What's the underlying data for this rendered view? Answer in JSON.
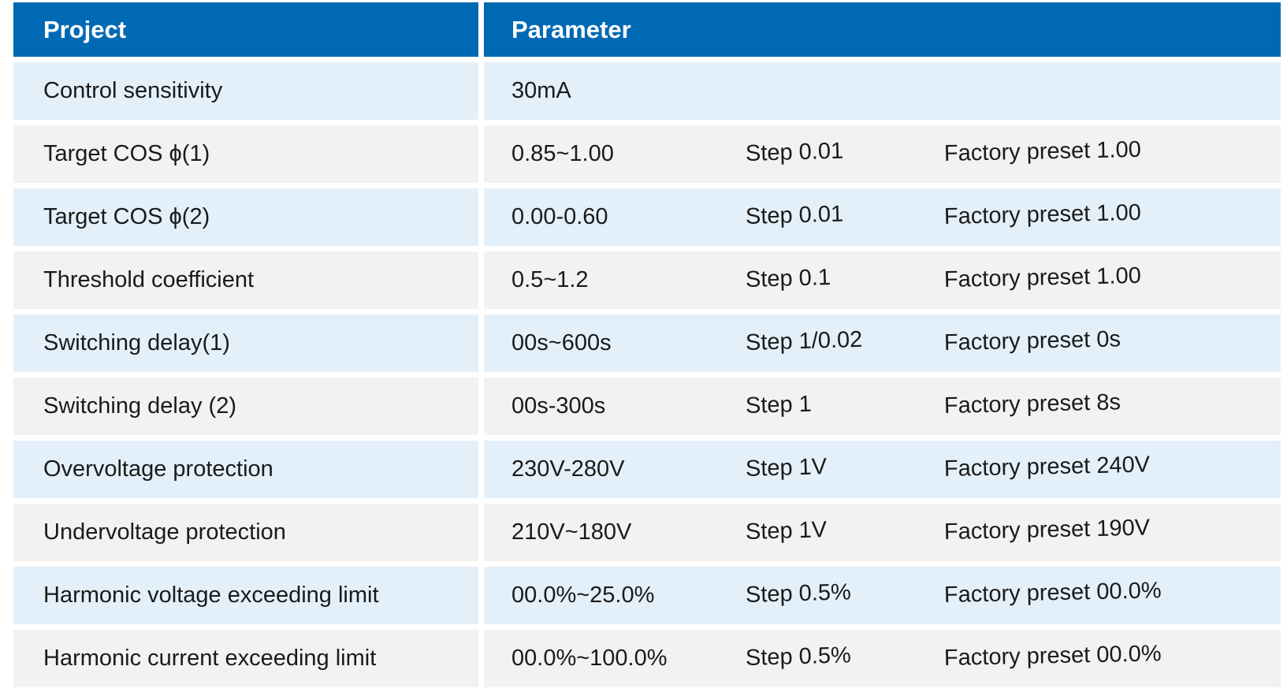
{
  "table": {
    "header": {
      "project": "Project",
      "parameter": "Parameter"
    },
    "rows": [
      {
        "project": "Control sensitivity",
        "value": "30mA",
        "step": "",
        "preset": ""
      },
      {
        "project": "Target COS ϕ(1)",
        "value": "0.85~1.00",
        "step": "Step 0.01",
        "preset": "Factory preset 1.00"
      },
      {
        "project": "Target COS ϕ(2)",
        "value": "0.00-0.60",
        "step": "Step 0.01",
        "preset": "Factory preset 1.00"
      },
      {
        "project": "Threshold coefficient",
        "value": "0.5~1.2",
        "step": "Step 0.1",
        "preset": "Factory preset 1.00"
      },
      {
        "project": "Switching delay(1)",
        "value": "00s~600s",
        "step": "Step 1/0.02",
        "preset": "Factory preset 0s"
      },
      {
        "project": "Switching delay (2)",
        "value": "00s-300s",
        "step": "Step 1",
        "preset": "Factory preset 8s"
      },
      {
        "project": "Overvoltage protection",
        "value": "230V-280V",
        "step": "Step 1V",
        "preset": "Factory preset 240V"
      },
      {
        "project": "Undervoltage protection",
        "value": "210V~180V",
        "step": "Step 1V",
        "preset": "Factory preset 190V"
      },
      {
        "project": "Harmonic voltage exceeding limit",
        "value": "00.0%~25.0%",
        "step": "Step 0.5%",
        "preset": "Factory preset 00.0%"
      },
      {
        "project": "Harmonic current exceeding limit",
        "value": "00.0%~100.0%",
        "step": "Step 0.5%",
        "preset": "Factory preset 00.0%"
      }
    ],
    "colors": {
      "header_bg": "#0069B4",
      "header_text": "#FFFFFF",
      "row_blue_bg": "#E3F0FA",
      "row_gray_bg": "#F2F2F2",
      "body_text": "#1A1A1A"
    }
  }
}
